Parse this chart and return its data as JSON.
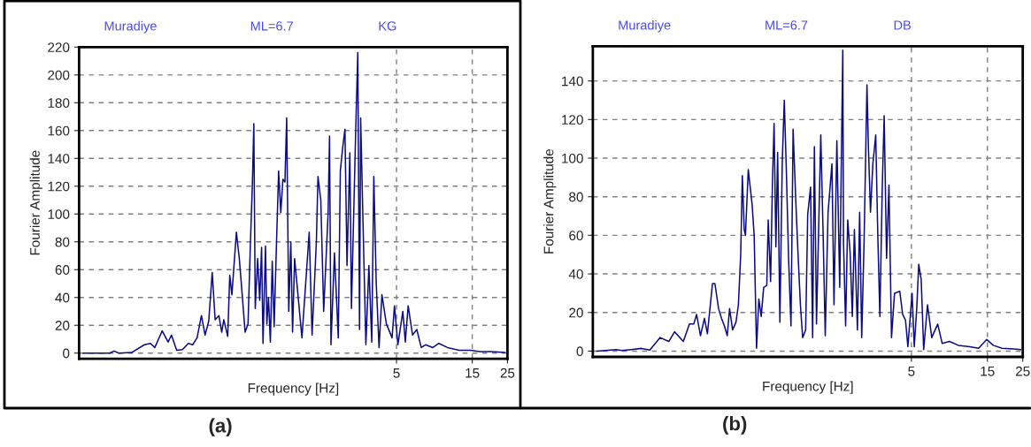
{
  "chart_data": [
    {
      "type": "line",
      "title": "(a)",
      "annotations": [
        "Muradiye",
        "ML=6.7",
        "KG"
      ],
      "xlabel": "Frequency [Hz]",
      "ylabel": "Fourier Amplitude",
      "log": "x",
      "grid": true,
      "xlim": [
        0.05,
        25
      ],
      "xticks": [
        5,
        15,
        25
      ],
      "ylim": [
        -4,
        220
      ],
      "yticks": [
        0,
        20,
        40,
        60,
        80,
        100,
        120,
        140,
        160,
        180,
        200,
        220
      ],
      "x": [
        0.053,
        0.078,
        0.083,
        0.089,
        0.107,
        0.129,
        0.141,
        0.15,
        0.167,
        0.182,
        0.191,
        0.206,
        0.224,
        0.244,
        0.26,
        0.277,
        0.295,
        0.311,
        0.328,
        0.345,
        0.36,
        0.38,
        0.396,
        0.408,
        0.432,
        0.445,
        0.459,
        0.49,
        0.511,
        0.533,
        0.556,
        0.58,
        0.6,
        0.618,
        0.631,
        0.644,
        0.667,
        0.687,
        0.706,
        0.721,
        0.747,
        0.762,
        0.78,
        0.802,
        0.824,
        0.847,
        0.873,
        0.904,
        0.933,
        0.962,
        0.991,
        1.016,
        1.047,
        1.079,
        1.107,
        1.14,
        1.268,
        1.409,
        1.469,
        1.563,
        1.6,
        1.667,
        1.738,
        1.854,
        1.892,
        1.932,
        2.032,
        2.148,
        2.213,
        2.291,
        2.366,
        2.438,
        2.541,
        2.6,
        2.767,
        2.851,
        2.924,
        2.972,
        3.076,
        3.206,
        3.35,
        3.491,
        3.597,
        3.724,
        3.881,
        4.046,
        4.315,
        4.688,
        4.853,
        5.1,
        5.48,
        5.68,
        5.92,
        6.31,
        6.71,
        7.16,
        7.62,
        8.47,
        9.23,
        10.47,
        12.38,
        14.69,
        16.67,
        19.72,
        24.16
      ],
      "series": [
        {
          "color": "#0b0b82",
          "values": [
            0,
            0,
            1.5,
            0,
            0.4,
            6,
            7,
            4,
            16,
            8,
            13,
            2,
            2.5,
            7,
            6,
            11,
            27,
            13,
            23,
            58,
            24,
            27,
            15,
            24,
            12,
            56,
            42,
            87,
            68,
            42,
            15,
            21,
            78,
            122,
            165,
            32,
            68,
            38,
            76,
            7,
            77,
            21,
            40,
            8,
            66,
            19,
            72,
            131,
            101,
            125,
            123,
            169,
            30,
            80,
            15,
            68,
            11,
            87,
            13,
            80,
            127,
            110,
            30,
            101,
            156,
            6,
            72,
            11,
            131,
            148,
            161,
            63,
            144,
            32,
            161,
            216,
            17,
            169,
            93,
            6,
            63,
            8,
            127,
            51,
            4,
            42,
            21,
            11,
            34,
            6,
            30,
            8,
            34,
            13,
            17,
            4,
            6,
            4,
            7,
            4,
            2,
            2,
            1.1,
            1.1,
            0.4
          ]
        }
      ]
    },
    {
      "type": "line",
      "title": "(b)",
      "annotations": [
        "Muradiye",
        "ML=6.7",
        "DB"
      ],
      "xlabel": "Frequency [Hz]",
      "ylabel": "Fourier Amplitude",
      "log": "x",
      "grid": true,
      "xlim": [
        0.05,
        25
      ],
      "xticks": [
        5,
        15,
        25
      ],
      "ylim": [
        -3,
        158
      ],
      "yticks": [
        0,
        20,
        40,
        60,
        80,
        100,
        120,
        140
      ],
      "x": [
        0.053,
        0.07,
        0.076,
        0.087,
        0.101,
        0.114,
        0.132,
        0.15,
        0.163,
        0.185,
        0.202,
        0.215,
        0.224,
        0.237,
        0.251,
        0.262,
        0.271,
        0.282,
        0.292,
        0.308,
        0.321,
        0.335,
        0.349,
        0.361,
        0.377,
        0.396,
        0.41,
        0.424,
        0.434,
        0.446,
        0.454,
        0.473,
        0.5,
        0.515,
        0.533,
        0.551,
        0.57,
        0.591,
        0.618,
        0.631,
        0.653,
        0.671,
        0.687,
        0.705,
        0.723,
        0.747,
        0.773,
        0.796,
        0.82,
        0.847,
        0.877,
        0.904,
        0.942,
        0.97,
        1.005,
        1.038,
        1.084,
        1.117,
        1.164,
        1.199,
        1.23,
        1.268,
        1.349,
        1.396,
        1.439,
        1.499,
        1.585,
        1.633,
        1.702,
        1.774,
        1.854,
        1.874,
        1.932,
        1.991,
        2.061,
        2.129,
        2.193,
        2.291,
        2.366,
        2.438,
        2.523,
        2.63,
        2.685,
        2.767,
        2.864,
        2.985,
        3.076,
        3.17,
        3.281,
        3.373,
        3.491,
        3.614,
        3.75,
        3.917,
        4.226,
        4.405,
        4.592,
        4.751,
        5.05,
        5.21,
        5.4,
        5.56,
        5.76,
        5.97,
        6.31,
        6.71,
        7.31,
        7.8,
        8.67,
        9.84,
        11.64,
        13.21,
        14.86,
        16.33,
        18.53,
        21.93,
        24.38
      ],
      "series": [
        {
          "color": "#0b0b82",
          "values": [
            0,
            0.8,
            0.3,
            0.8,
            1.4,
            0.5,
            7,
            5,
            10,
            5,
            14,
            14,
            19,
            8,
            17,
            9,
            21,
            35,
            35,
            22,
            17,
            13,
            8,
            22,
            11,
            15,
            24,
            50,
            91,
            63,
            60,
            94,
            76,
            60,
            1.5,
            27,
            18,
            33,
            34,
            68,
            36,
            88,
            118,
            54,
            103,
            15,
            98,
            130,
            94,
            48,
            13,
            115,
            76,
            51,
            24,
            7,
            11,
            71,
            85,
            7,
            106,
            14,
            112,
            60,
            8,
            72,
            97,
            24,
            109,
            33,
            156,
            56,
            13,
            68,
            51,
            18,
            63,
            11,
            72,
            7,
            57,
            138,
            106,
            72,
            97,
            112,
            60,
            18,
            85,
            122,
            48,
            86,
            7,
            30,
            31,
            19,
            16,
            2.3,
            30,
            2.3,
            22,
            45,
            37,
            0.8,
            24,
            7,
            14,
            4,
            5,
            3,
            2.3,
            1.5,
            6,
            3,
            1.5,
            1.1,
            0.8
          ]
        }
      ]
    }
  ]
}
